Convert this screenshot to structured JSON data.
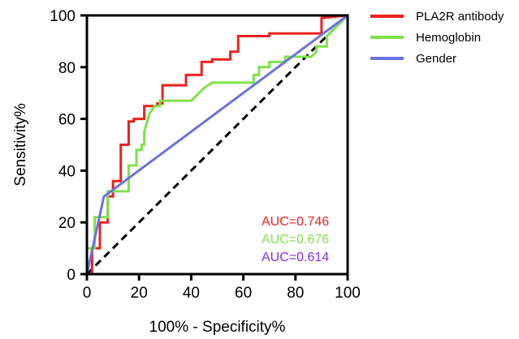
{
  "chart_data": {
    "type": "line",
    "title": "",
    "xlabel": "100% - Specificity%",
    "ylabel": "Sensitivity%",
    "xlim": [
      0,
      100
    ],
    "ylim": [
      0,
      100
    ],
    "xticks": [
      0,
      20,
      40,
      60,
      80,
      100
    ],
    "yticks": [
      0,
      20,
      40,
      60,
      80,
      100
    ],
    "legend_position": "right",
    "reference_line": {
      "style": "dashed",
      "color": "#000000",
      "x": [
        0,
        100
      ],
      "y": [
        0,
        100
      ]
    },
    "series": [
      {
        "name": "PLA2R antibody",
        "color": "#e8231f",
        "x": [
          0,
          2,
          2,
          5,
          5,
          8,
          8,
          10,
          10,
          13,
          13,
          16,
          16,
          18,
          18,
          22,
          22,
          27,
          27,
          29,
          29,
          38,
          38,
          44,
          44,
          48,
          48,
          55,
          55,
          58,
          58,
          70,
          70,
          90,
          90,
          100
        ],
        "y": [
          0,
          0,
          10,
          10,
          20,
          20,
          30,
          30,
          36,
          36,
          50,
          50,
          59,
          59,
          60,
          60,
          65,
          65,
          66,
          66,
          73,
          73,
          77,
          77,
          82,
          82,
          83,
          83,
          86,
          86,
          92,
          92,
          93,
          93,
          99,
          100
        ]
      },
      {
        "name": "Hemoglobin",
        "color": "#7ee24a",
        "x": [
          0,
          0,
          3,
          3,
          8,
          8,
          16,
          16,
          19,
          19,
          21,
          21,
          22,
          22,
          24,
          26,
          28,
          28,
          40,
          45,
          48,
          64,
          64,
          66,
          66,
          70,
          70,
          76,
          76,
          86,
          88,
          88,
          92,
          92,
          100
        ],
        "y": [
          0,
          10,
          10,
          22,
          22,
          32,
          32,
          42,
          42,
          48,
          48,
          50,
          50,
          55,
          62,
          65,
          65,
          67,
          67,
          72,
          74,
          74,
          77,
          77,
          80,
          80,
          82,
          82,
          84,
          84,
          86,
          88,
          88,
          92,
          100
        ]
      },
      {
        "name": "Gender",
        "color": "#6b73e0",
        "x": [
          0,
          6.5,
          100
        ],
        "y": [
          0,
          30,
          100
        ]
      }
    ],
    "annotations": [
      {
        "text": "AUC=0.746",
        "color": "#e8231f"
      },
      {
        "text": "AUC=0.676",
        "color": "#7ee24a"
      },
      {
        "text": "AUC=0.614",
        "color": "#8a2be2"
      }
    ]
  }
}
